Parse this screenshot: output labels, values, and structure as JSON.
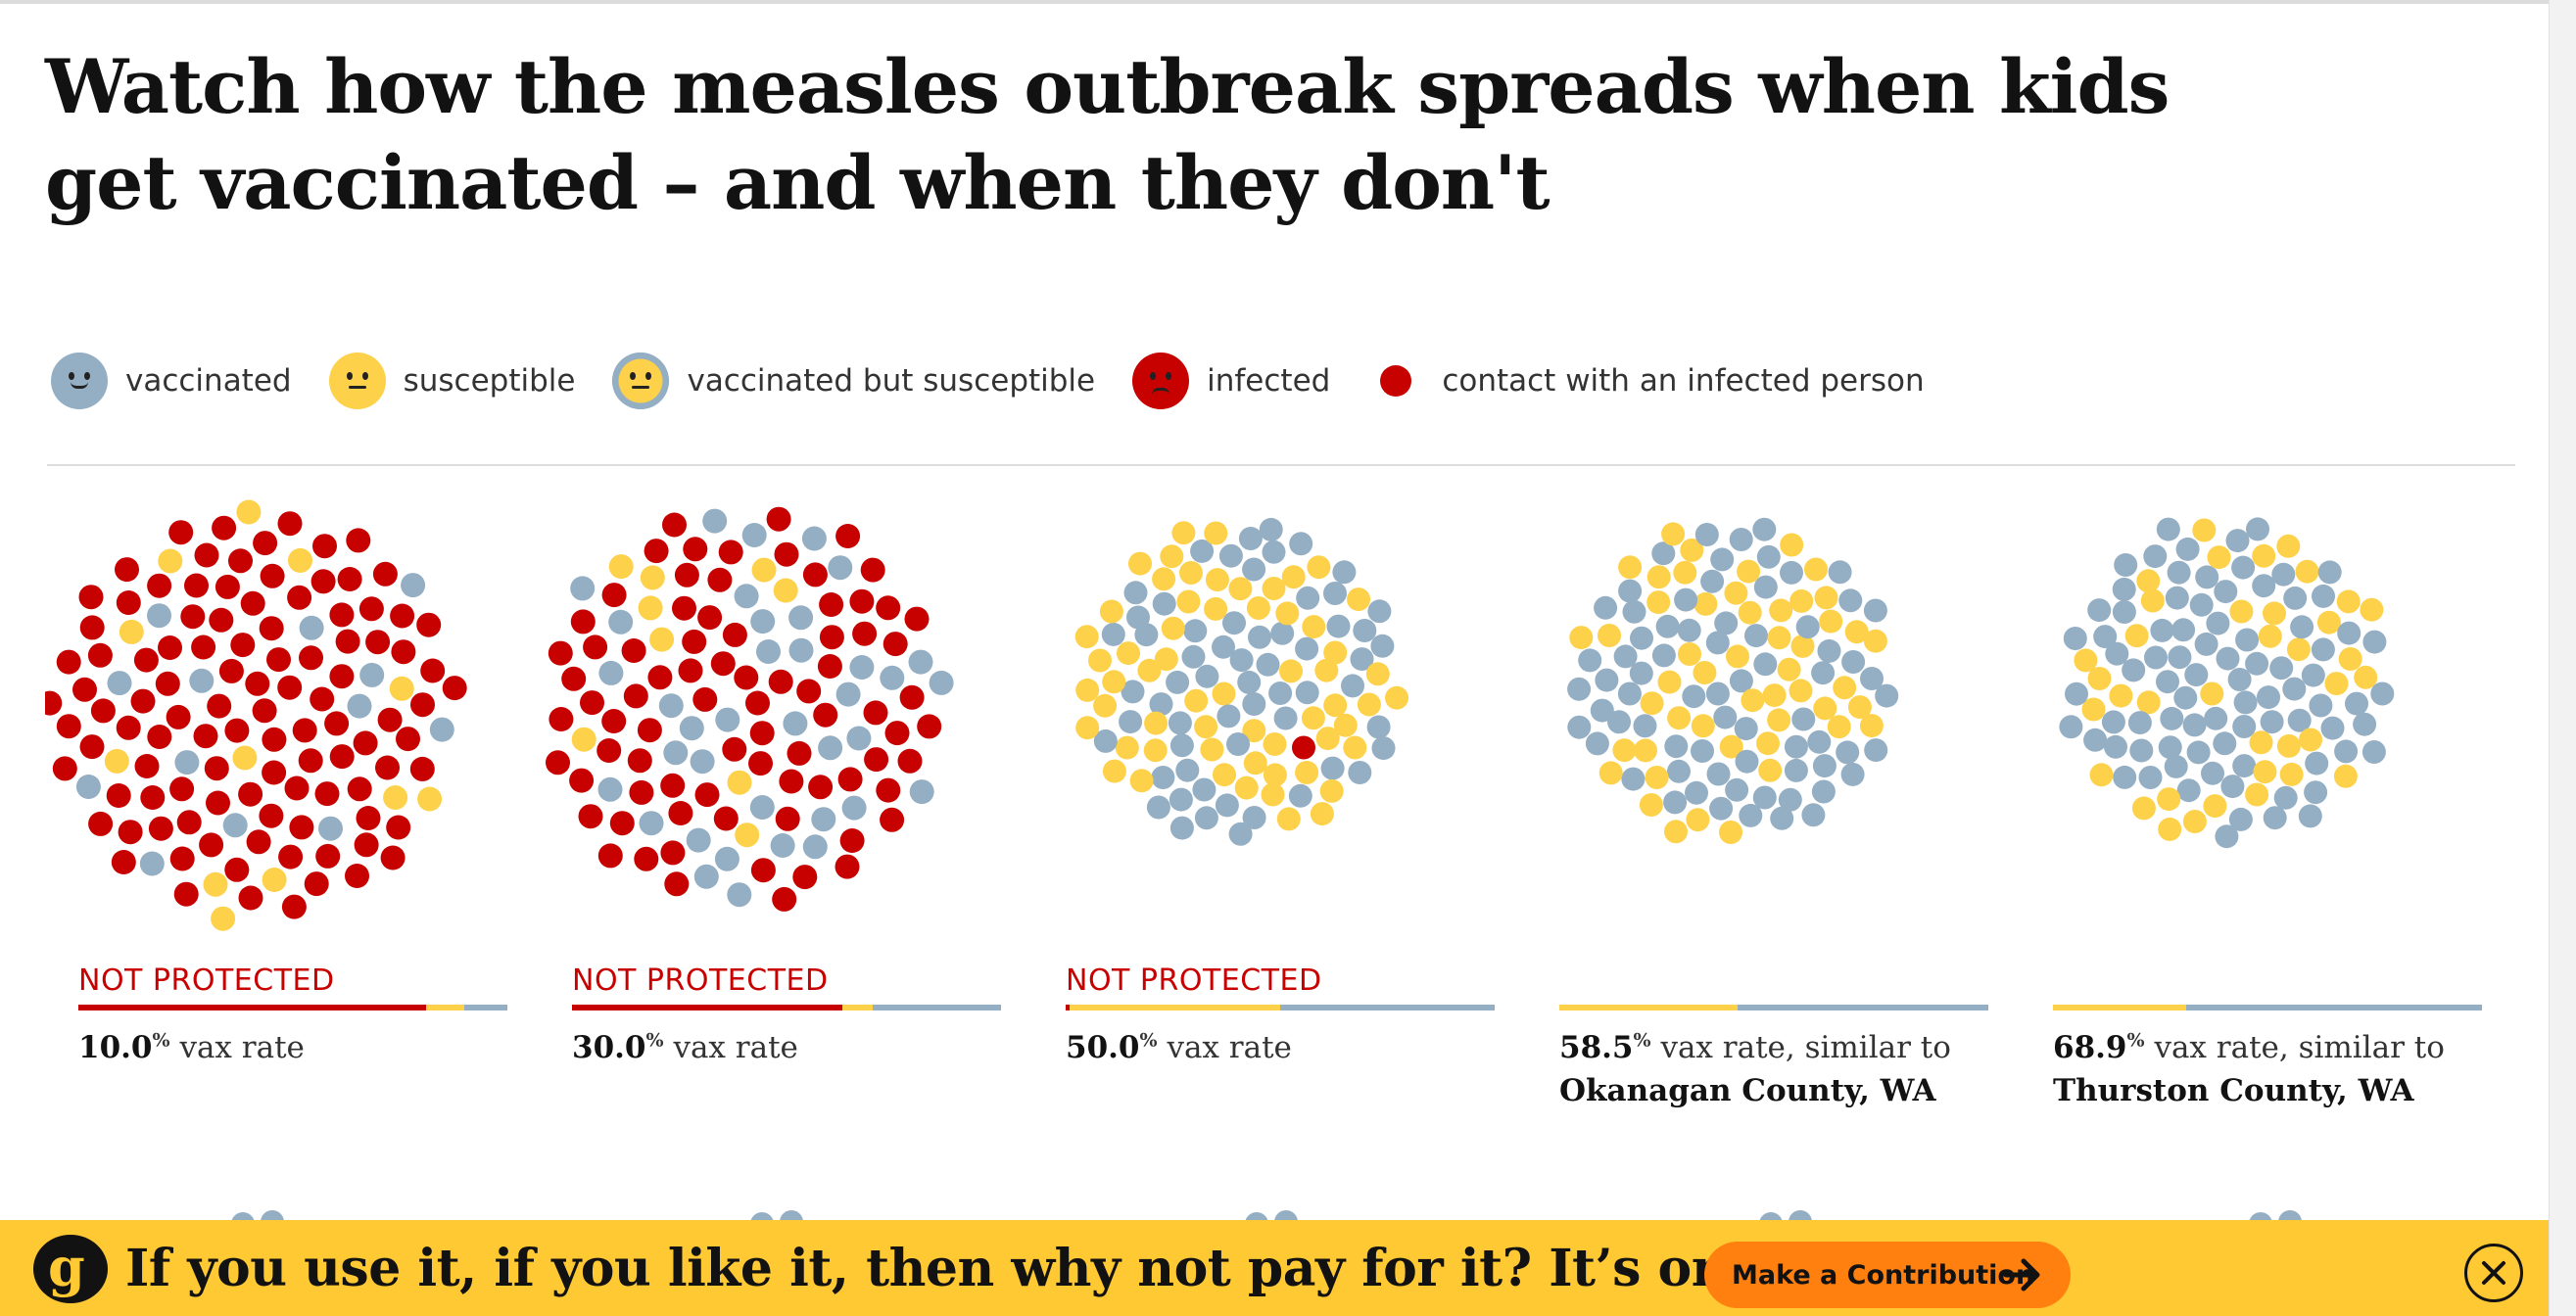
{
  "headline": "Watch how the measles outbreak spreads when kids get vaccinated – and when they don't",
  "colors": {
    "vaccinated": "#94aec4",
    "susceptible": "#fdd14a",
    "infected": "#c70000",
    "banner": "#ffc933",
    "button": "#ff7f0f"
  },
  "legend": [
    {
      "icon": "vaccinated-face-icon",
      "label": "vaccinated"
    },
    {
      "icon": "susceptible-face-icon",
      "label": "susceptible"
    },
    {
      "icon": "vaccinated-susceptible-face-icon",
      "label": "vaccinated but susceptible"
    },
    {
      "icon": "infected-face-icon",
      "label": "infected"
    },
    {
      "icon": "contact-dot-icon",
      "label": "contact with an infected person"
    }
  ],
  "simulations": [
    {
      "status": "NOT PROTECTED",
      "rate": "10.0",
      "suffix": "vax rate",
      "county": "",
      "counts": {
        "infected": 0.81,
        "susceptible": 0.09,
        "vaccinated": 0.1
      }
    },
    {
      "status": "NOT PROTECTED",
      "rate": "30.0",
      "suffix": "vax rate",
      "county": "",
      "counts": {
        "infected": 0.63,
        "susceptible": 0.07,
        "vaccinated": 0.3
      }
    },
    {
      "status": "NOT PROTECTED",
      "rate": "50.0",
      "suffix": "vax rate",
      "county": "",
      "counts": {
        "infected": 0.01,
        "susceptible": 0.49,
        "vaccinated": 0.5
      }
    },
    {
      "status": "",
      "rate": "58.5",
      "suffix": "vax rate, similar to",
      "county": "Okanagan County, WA",
      "counts": {
        "infected": 0,
        "susceptible": 0.415,
        "vaccinated": 0.585
      }
    },
    {
      "status": "",
      "rate": "68.9",
      "suffix": "vax rate, similar to",
      "county": "Thurston County, WA",
      "counts": {
        "infected": 0,
        "susceptible": 0.311,
        "vaccinated": 0.689
      }
    }
  ],
  "percent_symbol": "%",
  "banner": {
    "logo_icon": "guardian-g-logo-icon",
    "logo_letter": "g",
    "text": "If you use it, if you like it, then why not pay for it? It’s only fair.",
    "button_label": "Make a Contribution",
    "button_icon": "arrow-right-icon",
    "close_icon": "close-icon"
  }
}
